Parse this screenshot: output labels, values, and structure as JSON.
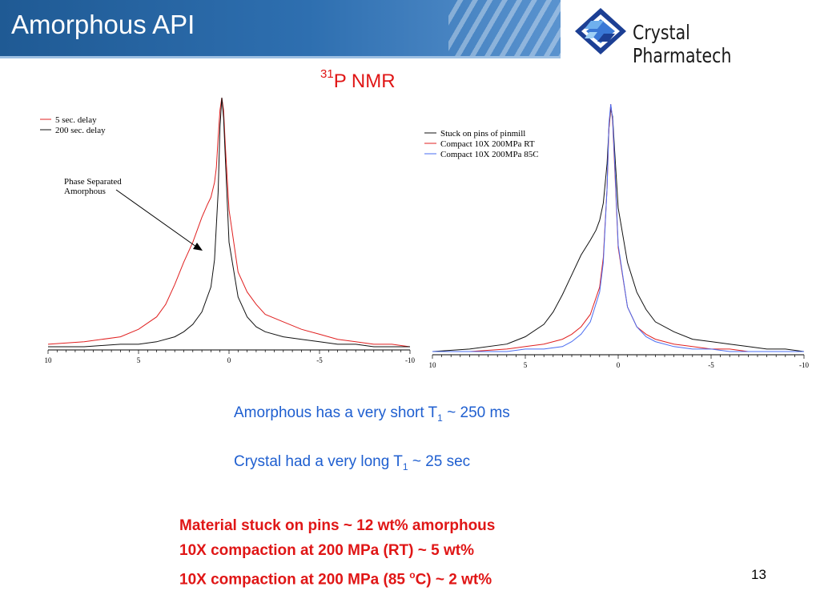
{
  "header": {
    "title": "Amorphous API"
  },
  "logo": {
    "text": "Crystal Pharmatech"
  },
  "nmr_title": {
    "sup": "31",
    "text": "P NMR"
  },
  "chart_data": [
    {
      "type": "line",
      "title": "",
      "xlabel": "",
      "ylabel": "",
      "xlim": [
        10,
        -10
      ],
      "x_ticks": [
        "10",
        "5",
        "0",
        "-5",
        "-10"
      ],
      "legend": {
        "position": "top-left"
      },
      "colors": {
        "5 sec. delay": "#e02020",
        "200 sec. delay": "#111111"
      },
      "series": [
        {
          "name": "5 sec. delay",
          "color": "#e02020",
          "x": [
            10,
            8,
            6,
            5,
            4,
            3.5,
            3,
            2.5,
            2,
            1.5,
            1.2,
            1.0,
            0.8,
            0.7,
            0.6,
            0.5,
            0.4,
            0.3,
            0.2,
            0.0,
            -0.5,
            -1,
            -1.5,
            -2,
            -3,
            -4,
            -5,
            -6,
            -7,
            -8,
            -9,
            -10
          ],
          "y": [
            0.01,
            0.02,
            0.04,
            0.07,
            0.12,
            0.17,
            0.25,
            0.34,
            0.42,
            0.52,
            0.57,
            0.6,
            0.66,
            0.72,
            0.84,
            0.95,
            1.0,
            0.95,
            0.8,
            0.55,
            0.3,
            0.22,
            0.17,
            0.13,
            0.1,
            0.07,
            0.05,
            0.03,
            0.02,
            0.01,
            0.01,
            0.0
          ]
        },
        {
          "name": "200 sec. delay",
          "color": "#111111",
          "x": [
            10,
            8,
            6,
            5,
            4,
            3,
            2.5,
            2,
            1.5,
            1.0,
            0.8,
            0.6,
            0.5,
            0.4,
            0.3,
            0.2,
            0.0,
            -0.5,
            -1,
            -1.5,
            -2,
            -3,
            -4,
            -5,
            -6,
            -7,
            -8,
            -9,
            -10
          ],
          "y": [
            0.0,
            0.0,
            0.01,
            0.01,
            0.02,
            0.04,
            0.06,
            0.09,
            0.14,
            0.24,
            0.35,
            0.62,
            0.88,
            1.0,
            0.92,
            0.75,
            0.42,
            0.2,
            0.12,
            0.08,
            0.06,
            0.04,
            0.03,
            0.02,
            0.01,
            0.01,
            0.0,
            0.0,
            0.0
          ]
        }
      ],
      "annotations": [
        {
          "text": [
            "Phase Separated",
            "Amorphous"
          ],
          "arrow_to_x": 1.5
        }
      ]
    },
    {
      "type": "line",
      "title": "",
      "xlabel": "",
      "ylabel": "",
      "xlim": [
        10,
        -10
      ],
      "x_ticks": [
        "10",
        "5",
        "0",
        "-5",
        "-10"
      ],
      "legend": {
        "position": "top-right"
      },
      "colors": {
        "Stuck on pins of pinmill": "#111111",
        "Compact 10X 200MPa RT": "#e02020",
        "Compact 10X 200MPa 85C": "#4a6cf0"
      },
      "series": [
        {
          "name": "Stuck on pins of pinmill",
          "color": "#111111",
          "x": [
            10,
            8,
            6,
            5,
            4,
            3.5,
            3,
            2.5,
            2,
            1.5,
            1.2,
            1.0,
            0.8,
            0.6,
            0.5,
            0.4,
            0.3,
            0.2,
            0.0,
            -0.5,
            -1,
            -1.5,
            -2,
            -3,
            -4,
            -5,
            -6,
            -7,
            -8,
            -9,
            -10
          ],
          "y": [
            0.0,
            0.01,
            0.03,
            0.06,
            0.11,
            0.16,
            0.23,
            0.31,
            0.39,
            0.45,
            0.49,
            0.53,
            0.6,
            0.76,
            0.9,
            0.98,
            0.95,
            0.82,
            0.58,
            0.36,
            0.24,
            0.17,
            0.12,
            0.08,
            0.05,
            0.04,
            0.03,
            0.02,
            0.01,
            0.01,
            0.0
          ]
        },
        {
          "name": "Compact 10X 200MPa RT",
          "color": "#e02020",
          "x": [
            10,
            8,
            6,
            5,
            4,
            3,
            2.5,
            2,
            1.5,
            1.0,
            0.8,
            0.6,
            0.5,
            0.4,
            0.3,
            0.2,
            0.0,
            -0.5,
            -1,
            -1.5,
            -2,
            -3,
            -4,
            -5,
            -6,
            -7,
            -8,
            -9,
            -10
          ],
          "y": [
            0.0,
            0.0,
            0.01,
            0.02,
            0.03,
            0.05,
            0.07,
            0.1,
            0.15,
            0.26,
            0.38,
            0.66,
            0.9,
            1.0,
            0.93,
            0.76,
            0.42,
            0.18,
            0.1,
            0.07,
            0.05,
            0.03,
            0.02,
            0.01,
            0.01,
            0.0,
            0.0,
            0.0,
            0.0
          ]
        },
        {
          "name": "Compact 10X 200MPa 85C",
          "color": "#4a6cf0",
          "x": [
            10,
            8,
            6,
            5,
            4,
            3,
            2.5,
            2,
            1.5,
            1.0,
            0.8,
            0.6,
            0.5,
            0.4,
            0.3,
            0.2,
            0.0,
            -0.5,
            -1,
            -1.5,
            -2,
            -3,
            -4,
            -5,
            -6,
            -7,
            -8,
            -9,
            -10
          ],
          "y": [
            0.0,
            0.0,
            0.0,
            0.01,
            0.01,
            0.02,
            0.04,
            0.07,
            0.12,
            0.24,
            0.36,
            0.66,
            0.92,
            1.0,
            0.94,
            0.78,
            0.43,
            0.18,
            0.1,
            0.06,
            0.04,
            0.02,
            0.01,
            0.01,
            0.0,
            0.0,
            0.0,
            0.0,
            0.0
          ]
        }
      ]
    }
  ],
  "text1": {
    "main": "Amorphous has a very short T",
    "sub": "1",
    "tail": " ~ 250 ms"
  },
  "text2": {
    "main": "Crystal had a very long T",
    "sub": "1",
    "tail": " ~ 25 sec"
  },
  "red_list": {
    "line1": "Material stuck on pins ~ 12 wt% amorphous",
    "line2": "10X compaction at 200 MPa (RT) ~ 5 wt%",
    "line3_a": "10X compaction at 200 MPa (85 ",
    "line3_sup": "o",
    "line3_b": "C) ~ 2 wt%"
  },
  "page_number": "13"
}
